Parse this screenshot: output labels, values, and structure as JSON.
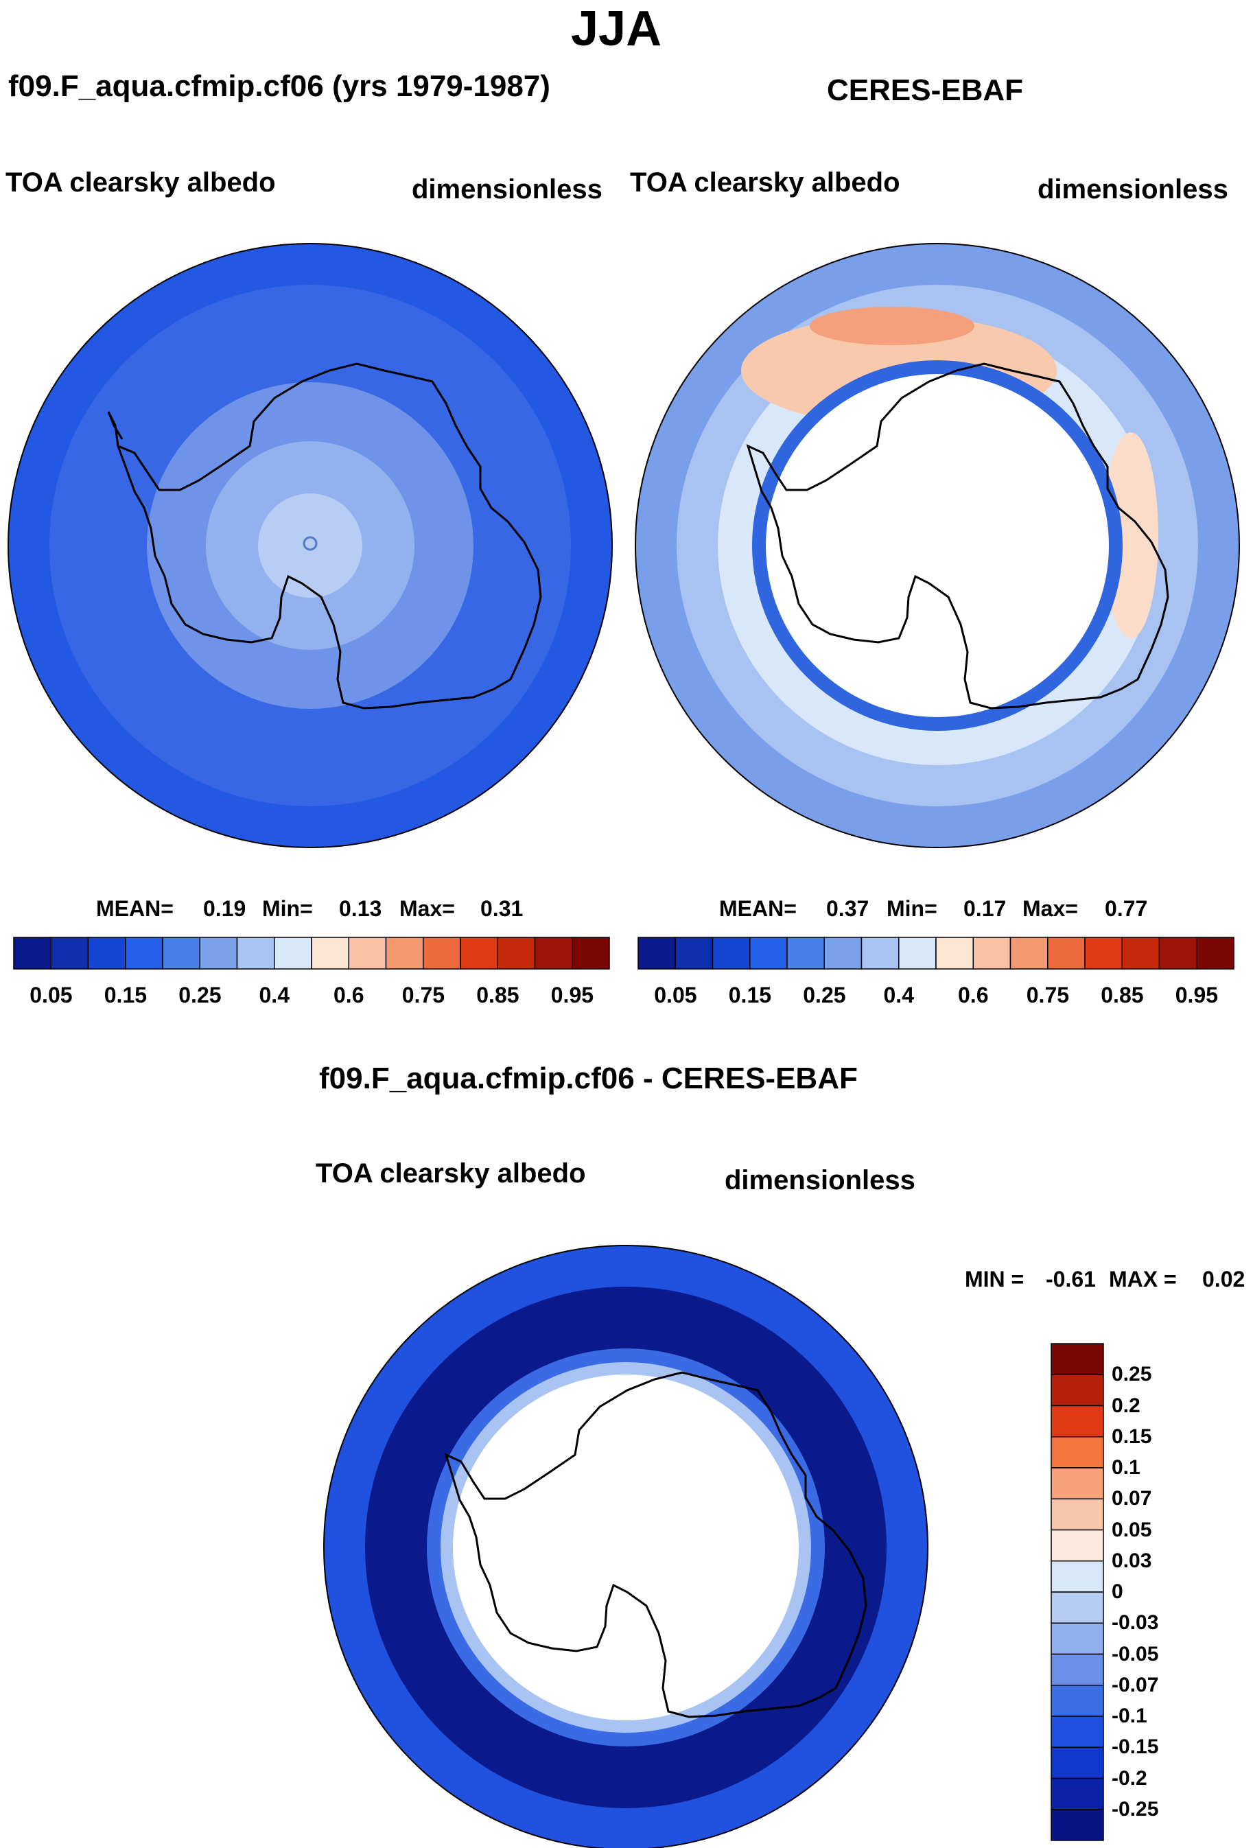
{
  "season": "JJA",
  "panels": [
    {
      "id": "model",
      "title": "f09.F_aqua.cfmip.cf06 (yrs 1979-1987)",
      "variable": "TOA clearsky albedo",
      "units": "dimensionless",
      "stats": {
        "mean_label": "MEAN=",
        "mean": "0.19",
        "min_label": "Min=",
        "min": "0.13",
        "max_label": "Max=",
        "max": "0.31"
      }
    },
    {
      "id": "obs",
      "title": "CERES-EBAF",
      "variable": "TOA clearsky albedo",
      "units": "dimensionless",
      "stats": {
        "mean_label": "MEAN=",
        "mean": "0.37",
        "min_label": "Min=",
        "min": "0.17",
        "max_label": "Max=",
        "max": "0.77"
      }
    },
    {
      "id": "diff",
      "title": "f09.F_aqua.cfmip.cf06 - CERES-EBAF",
      "variable": "TOA clearsky albedo",
      "units": "dimensionless",
      "stats": {
        "min_label": "MIN =",
        "min": "-0.61",
        "max_label": "MAX =",
        "max": "0.02"
      }
    }
  ],
  "albedo_colorbar": {
    "colors": [
      "#0a1a8c",
      "#0d2fb0",
      "#1446d4",
      "#2460e8",
      "#4a7fe8",
      "#7aa0ea",
      "#a9c3f2",
      "#d8e8f8",
      "#fde5d4",
      "#f9c1a3",
      "#f49a72",
      "#ec6a3c",
      "#e03a16",
      "#c42a0a",
      "#9e1208",
      "#7a0606"
    ],
    "labels": [
      "0.05",
      "0.15",
      "0.25",
      "0.4",
      "0.6",
      "0.75",
      "0.85",
      "0.95"
    ]
  },
  "diff_colorbar": {
    "colors": [
      "#7a0606",
      "#b4200a",
      "#e03a16",
      "#f4753e",
      "#f7a27b",
      "#f9c8ab",
      "#fde8dc",
      "#d8e8f8",
      "#b6cdf3",
      "#92b0ee",
      "#6a90e8",
      "#3c6de4",
      "#1f50df",
      "#1138cc",
      "#0a22a8",
      "#081484"
    ],
    "labels": [
      "0.25",
      "0.2",
      "0.15",
      "0.1",
      "0.07",
      "0.05",
      "0.03",
      "0",
      "-0.03",
      "-0.05",
      "-0.07",
      "-0.1",
      "-0.15",
      "-0.2",
      "-0.25"
    ]
  }
}
